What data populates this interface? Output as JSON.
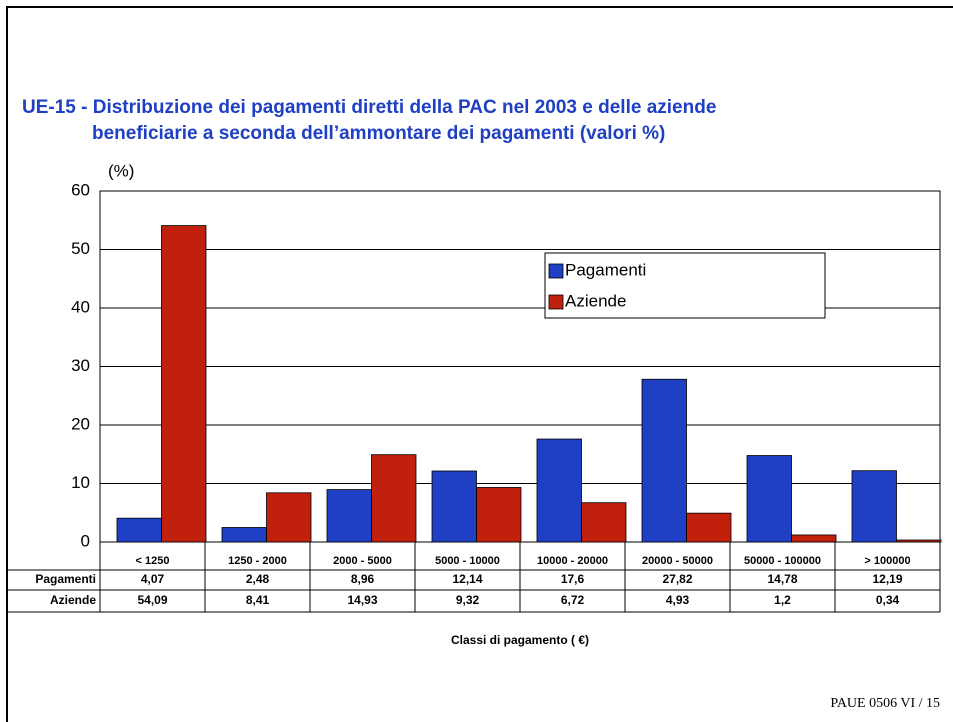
{
  "chart_data": {
    "type": "bar",
    "title": [
      "UE-15 - Distribuzione dei pagamenti diretti della PAC nel 2003 e delle aziende",
      "beneficiarie a seconda dell’ammontare dei pagamenti (valori %)"
    ],
    "y_label": "(%)",
    "x_label": "Classi di pagamento ( €)",
    "categories": [
      "< 1250",
      "1250 - 2000",
      "2000 - 5000",
      "5000 - 10000",
      "10000 - 20000",
      "20000 - 50000",
      "50000 - 100000",
      "> 100000"
    ],
    "series": [
      {
        "name": "Pagamenti",
        "color": "#1f3fc4",
        "values": [
          4.07,
          2.48,
          8.96,
          12.14,
          17.6,
          27.82,
          14.78,
          12.19
        ],
        "value_labels": [
          "4,07",
          "2,48",
          "8,96",
          "12,14",
          "17,6",
          "27,82",
          "14,78",
          "12,19"
        ]
      },
      {
        "name": "Aziende",
        "color": "#c0200c",
        "values": [
          54.09,
          8.41,
          14.93,
          9.32,
          6.72,
          4.93,
          1.2,
          0.34
        ],
        "value_labels": [
          "54,09",
          "8,41",
          "14,93",
          "9,32",
          "6,72",
          "4,93",
          "1,2",
          "0,34"
        ]
      }
    ],
    "ylim": [
      0,
      60
    ],
    "yticks": [
      0,
      10,
      20,
      30,
      40,
      50,
      60
    ],
    "grid": true,
    "legend": "upper right"
  },
  "footer": "PAUE 0506  VI  /  15"
}
